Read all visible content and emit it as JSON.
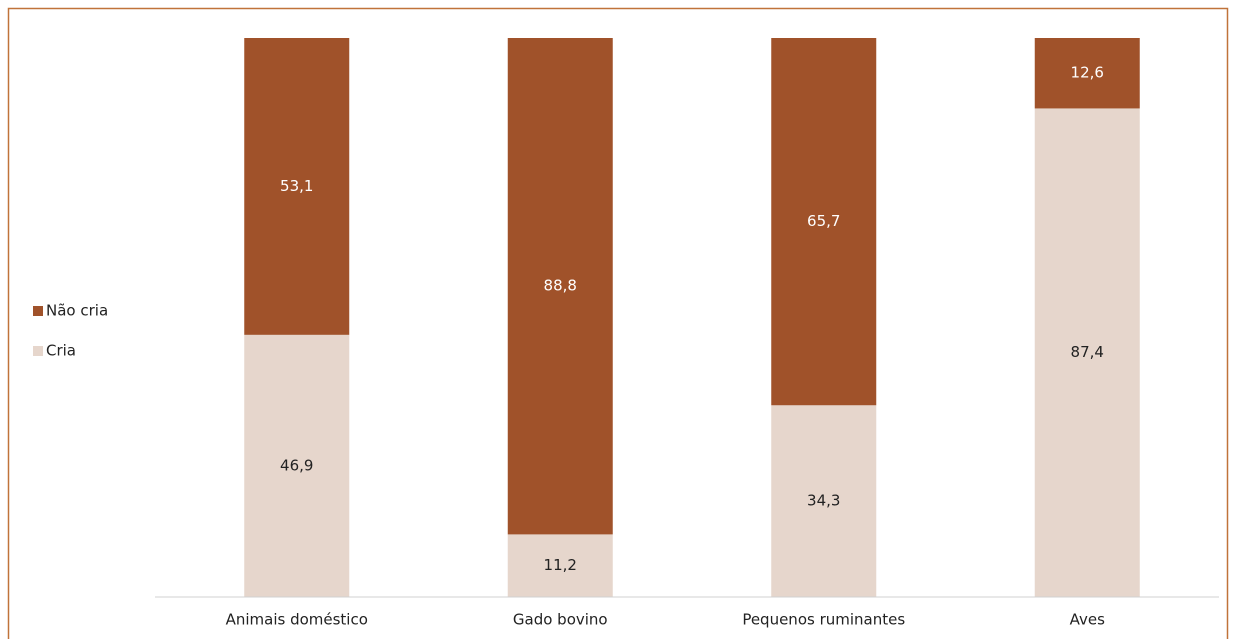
{
  "chart_data": {
    "type": "stacked_bar",
    "categories": [
      "Animais doméstico",
      "Gado bovino",
      "Pequenos ruminantes",
      "Aves"
    ],
    "series": [
      {
        "name": "Cria",
        "color": "#e6d6cc",
        "values": [
          46.9,
          11.2,
          34.3,
          87.4
        ],
        "value_labels": [
          "46,9",
          "11,2",
          "34,3",
          "87,4"
        ]
      },
      {
        "name": "Não cria",
        "color": "#a0522a",
        "values": [
          53.1,
          88.8,
          65.7,
          12.6
        ],
        "value_labels": [
          "53,1",
          "88,8",
          "65,7",
          "12,6"
        ]
      }
    ],
    "ylim": [
      0,
      100
    ],
    "legend": "left"
  }
}
